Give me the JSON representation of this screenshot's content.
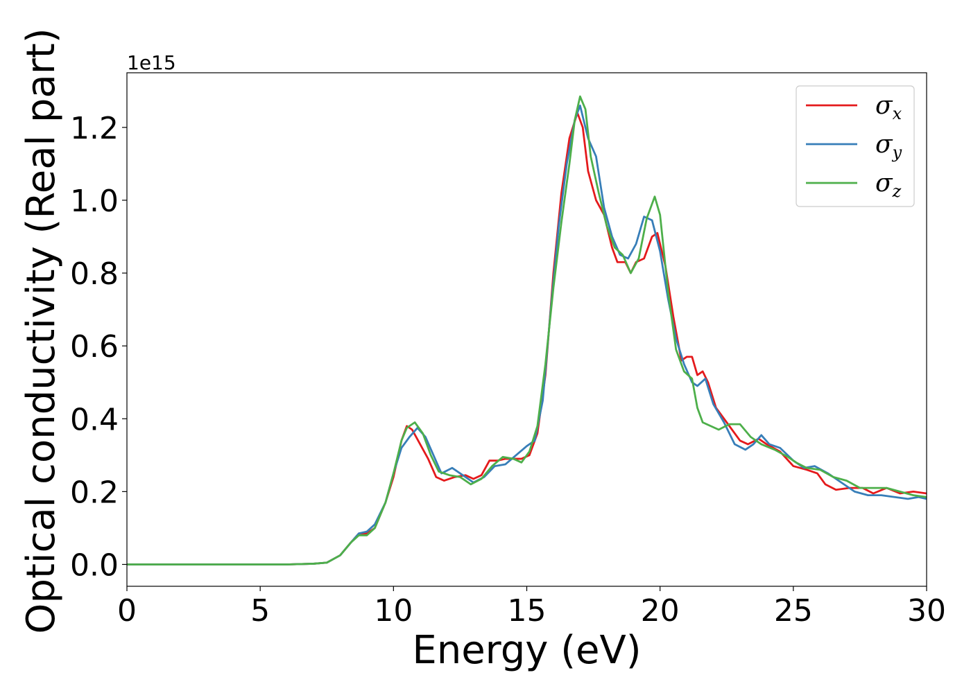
{
  "chart_data": {
    "type": "line",
    "xlabel": "Energy (eV)",
    "ylabel": "Optical conductivity (Real part)",
    "y_offset_text": "1e15",
    "xlim": [
      0,
      30
    ],
    "ylim": [
      -0.06,
      1.35
    ],
    "x_ticks": [
      0,
      5,
      10,
      15,
      20,
      25,
      30
    ],
    "x_tick_labels": [
      "0",
      "5",
      "10",
      "15",
      "20",
      "25",
      "30"
    ],
    "y_ticks": [
      0.0,
      0.2,
      0.4,
      0.6,
      0.8,
      1.0,
      1.2
    ],
    "y_tick_labels": [
      "0.0",
      "0.2",
      "0.4",
      "0.6",
      "0.8",
      "1.0",
      "1.2"
    ],
    "grid": false,
    "legend_position": "top-right",
    "series": [
      {
        "name": "σx",
        "legend_symbol": "σ",
        "legend_subscript": "x",
        "color": "#e41a1c",
        "points": [
          [
            0,
            0
          ],
          [
            6,
            0
          ],
          [
            7,
            0.002
          ],
          [
            7.5,
            0.005
          ],
          [
            8,
            0.025
          ],
          [
            8.4,
            0.06
          ],
          [
            8.7,
            0.085
          ],
          [
            9,
            0.085
          ],
          [
            9.3,
            0.1
          ],
          [
            9.7,
            0.17
          ],
          [
            10,
            0.24
          ],
          [
            10.3,
            0.34
          ],
          [
            10.5,
            0.38
          ],
          [
            10.7,
            0.37
          ],
          [
            11,
            0.33
          ],
          [
            11.3,
            0.29
          ],
          [
            11.6,
            0.24
          ],
          [
            11.9,
            0.23
          ],
          [
            12.3,
            0.24
          ],
          [
            12.7,
            0.245
          ],
          [
            13,
            0.235
          ],
          [
            13.3,
            0.245
          ],
          [
            13.6,
            0.285
          ],
          [
            13.9,
            0.285
          ],
          [
            14.2,
            0.29
          ],
          [
            14.5,
            0.29
          ],
          [
            14.8,
            0.29
          ],
          [
            15.1,
            0.3
          ],
          [
            15.4,
            0.36
          ],
          [
            15.7,
            0.52
          ],
          [
            16,
            0.8
          ],
          [
            16.3,
            1.02
          ],
          [
            16.6,
            1.17
          ],
          [
            16.9,
            1.24
          ],
          [
            17.1,
            1.2
          ],
          [
            17.3,
            1.08
          ],
          [
            17.6,
            1.0
          ],
          [
            17.9,
            0.96
          ],
          [
            18.2,
            0.87
          ],
          [
            18.4,
            0.83
          ],
          [
            18.7,
            0.83
          ],
          [
            18.9,
            0.8
          ],
          [
            19.1,
            0.83
          ],
          [
            19.4,
            0.84
          ],
          [
            19.7,
            0.9
          ],
          [
            19.9,
            0.91
          ],
          [
            20.2,
            0.82
          ],
          [
            20.5,
            0.68
          ],
          [
            20.8,
            0.56
          ],
          [
            21,
            0.57
          ],
          [
            21.2,
            0.57
          ],
          [
            21.4,
            0.52
          ],
          [
            21.6,
            0.53
          ],
          [
            21.8,
            0.5
          ],
          [
            22.1,
            0.43
          ],
          [
            22.5,
            0.39
          ],
          [
            23,
            0.34
          ],
          [
            23.3,
            0.33
          ],
          [
            23.7,
            0.345
          ],
          [
            24,
            0.33
          ],
          [
            24.5,
            0.31
          ],
          [
            25,
            0.27
          ],
          [
            25.5,
            0.26
          ],
          [
            25.9,
            0.25
          ],
          [
            26.2,
            0.22
          ],
          [
            26.6,
            0.205
          ],
          [
            27.1,
            0.21
          ],
          [
            27.6,
            0.21
          ],
          [
            28,
            0.195
          ],
          [
            28.5,
            0.21
          ],
          [
            29,
            0.195
          ],
          [
            29.5,
            0.2
          ],
          [
            30,
            0.195
          ]
        ]
      },
      {
        "name": "σy",
        "legend_symbol": "σ",
        "legend_subscript": "y",
        "color": "#377eb8",
        "points": [
          [
            0,
            0
          ],
          [
            6,
            0
          ],
          [
            7,
            0.002
          ],
          [
            7.5,
            0.005
          ],
          [
            8,
            0.025
          ],
          [
            8.4,
            0.06
          ],
          [
            8.7,
            0.085
          ],
          [
            9,
            0.09
          ],
          [
            9.3,
            0.11
          ],
          [
            9.7,
            0.17
          ],
          [
            10,
            0.25
          ],
          [
            10.3,
            0.32
          ],
          [
            10.6,
            0.35
          ],
          [
            10.9,
            0.375
          ],
          [
            11.2,
            0.35
          ],
          [
            11.5,
            0.3
          ],
          [
            11.8,
            0.25
          ],
          [
            12.2,
            0.265
          ],
          [
            12.6,
            0.245
          ],
          [
            13,
            0.225
          ],
          [
            13.4,
            0.24
          ],
          [
            13.8,
            0.27
          ],
          [
            14.2,
            0.275
          ],
          [
            14.6,
            0.3
          ],
          [
            15,
            0.325
          ],
          [
            15.3,
            0.34
          ],
          [
            15.6,
            0.45
          ],
          [
            15.9,
            0.7
          ],
          [
            16.2,
            0.93
          ],
          [
            16.5,
            1.1
          ],
          [
            16.8,
            1.22
          ],
          [
            17,
            1.26
          ],
          [
            17.3,
            1.17
          ],
          [
            17.6,
            1.12
          ],
          [
            17.9,
            0.98
          ],
          [
            18.2,
            0.9
          ],
          [
            18.5,
            0.85
          ],
          [
            18.8,
            0.84
          ],
          [
            19.1,
            0.88
          ],
          [
            19.4,
            0.955
          ],
          [
            19.7,
            0.945
          ],
          [
            20,
            0.86
          ],
          [
            20.3,
            0.73
          ],
          [
            20.6,
            0.62
          ],
          [
            20.9,
            0.55
          ],
          [
            21.2,
            0.5
          ],
          [
            21.4,
            0.49
          ],
          [
            21.7,
            0.51
          ],
          [
            22,
            0.44
          ],
          [
            22.4,
            0.39
          ],
          [
            22.8,
            0.33
          ],
          [
            23.2,
            0.315
          ],
          [
            23.5,
            0.33
          ],
          [
            23.8,
            0.355
          ],
          [
            24.1,
            0.33
          ],
          [
            24.5,
            0.32
          ],
          [
            25,
            0.285
          ],
          [
            25.4,
            0.265
          ],
          [
            25.8,
            0.27
          ],
          [
            26.3,
            0.25
          ],
          [
            26.8,
            0.225
          ],
          [
            27.3,
            0.2
          ],
          [
            27.8,
            0.19
          ],
          [
            28.3,
            0.19
          ],
          [
            28.8,
            0.185
          ],
          [
            29.3,
            0.18
          ],
          [
            29.7,
            0.185
          ],
          [
            30,
            0.18
          ]
        ]
      },
      {
        "name": "σz",
        "legend_symbol": "σ",
        "legend_subscript": "z",
        "color": "#4daf4a",
        "points": [
          [
            0,
            0
          ],
          [
            6,
            0
          ],
          [
            7,
            0.002
          ],
          [
            7.5,
            0.005
          ],
          [
            8,
            0.025
          ],
          [
            8.4,
            0.06
          ],
          [
            8.7,
            0.08
          ],
          [
            9,
            0.08
          ],
          [
            9.3,
            0.1
          ],
          [
            9.7,
            0.17
          ],
          [
            10,
            0.25
          ],
          [
            10.3,
            0.34
          ],
          [
            10.5,
            0.375
          ],
          [
            10.8,
            0.39
          ],
          [
            11.1,
            0.36
          ],
          [
            11.4,
            0.3
          ],
          [
            11.7,
            0.255
          ],
          [
            12.1,
            0.245
          ],
          [
            12.5,
            0.24
          ],
          [
            12.9,
            0.22
          ],
          [
            13.3,
            0.235
          ],
          [
            13.7,
            0.27
          ],
          [
            14.1,
            0.295
          ],
          [
            14.5,
            0.29
          ],
          [
            14.8,
            0.28
          ],
          [
            15.1,
            0.31
          ],
          [
            15.4,
            0.38
          ],
          [
            15.7,
            0.55
          ],
          [
            16,
            0.76
          ],
          [
            16.3,
            0.94
          ],
          [
            16.6,
            1.1
          ],
          [
            16.8,
            1.22
          ],
          [
            17,
            1.285
          ],
          [
            17.2,
            1.25
          ],
          [
            17.4,
            1.12
          ],
          [
            17.7,
            1.02
          ],
          [
            18,
            0.93
          ],
          [
            18.3,
            0.87
          ],
          [
            18.6,
            0.85
          ],
          [
            18.9,
            0.8
          ],
          [
            19.2,
            0.84
          ],
          [
            19.5,
            0.95
          ],
          [
            19.8,
            1.01
          ],
          [
            20,
            0.96
          ],
          [
            20.3,
            0.75
          ],
          [
            20.6,
            0.59
          ],
          [
            20.9,
            0.53
          ],
          [
            21.2,
            0.51
          ],
          [
            21.4,
            0.43
          ],
          [
            21.6,
            0.39
          ],
          [
            21.9,
            0.38
          ],
          [
            22.2,
            0.37
          ],
          [
            22.6,
            0.385
          ],
          [
            23,
            0.385
          ],
          [
            23.4,
            0.35
          ],
          [
            23.8,
            0.33
          ],
          [
            24.3,
            0.315
          ],
          [
            24.8,
            0.295
          ],
          [
            25.1,
            0.28
          ],
          [
            25.5,
            0.265
          ],
          [
            26,
            0.26
          ],
          [
            26.5,
            0.24
          ],
          [
            27,
            0.23
          ],
          [
            27.5,
            0.21
          ],
          [
            28,
            0.21
          ],
          [
            28.5,
            0.21
          ],
          [
            29,
            0.2
          ],
          [
            29.5,
            0.19
          ],
          [
            30,
            0.185
          ]
        ]
      }
    ]
  }
}
